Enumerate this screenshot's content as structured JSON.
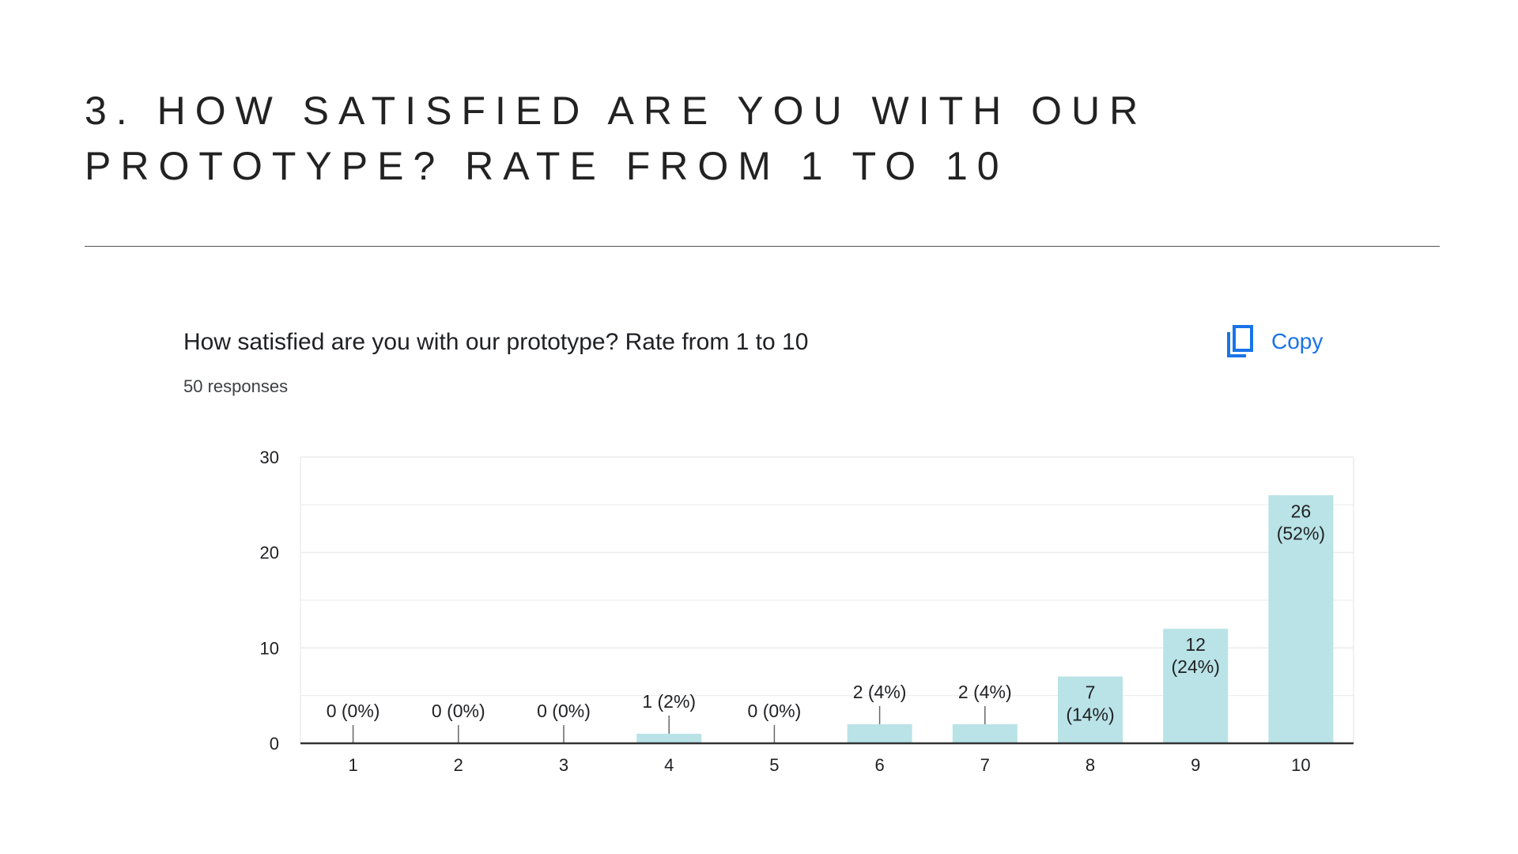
{
  "slide": {
    "title_line1": "3. HOW SATISFIED ARE YOU WITH OUR",
    "title_line2": "PROTOTYPE? RATE FROM 1 TO 10"
  },
  "card": {
    "question": "How satisfied are you with our prototype? Rate from 1 to 10",
    "responses": "50 responses",
    "copy_label": "Copy",
    "copy_icon": "copy-icon"
  },
  "colors": {
    "bar": "#b9e3e6",
    "link": "#1a73e8",
    "grid": "#ececec",
    "axis": "#333333",
    "text": "#202124"
  },
  "chart_data": {
    "type": "bar",
    "categories": [
      "1",
      "2",
      "3",
      "4",
      "5",
      "6",
      "7",
      "8",
      "9",
      "10"
    ],
    "values": [
      0,
      0,
      0,
      1,
      0,
      2,
      2,
      7,
      12,
      26
    ],
    "data_labels": [
      "0 (0%)",
      "0 (0%)",
      "0 (0%)",
      "1 (2%)",
      "0 (0%)",
      "2 (4%)",
      "2 (4%)",
      "7 (14%)",
      "12 (24%)",
      "26 (52%)"
    ],
    "title": "How satisfied are you with our prototype? Rate from 1 to 10",
    "xlabel": "",
    "ylabel": "",
    "ylim": [
      0,
      30
    ],
    "yticks": [
      0,
      10,
      20,
      30
    ],
    "grid": true,
    "legend": "none"
  }
}
